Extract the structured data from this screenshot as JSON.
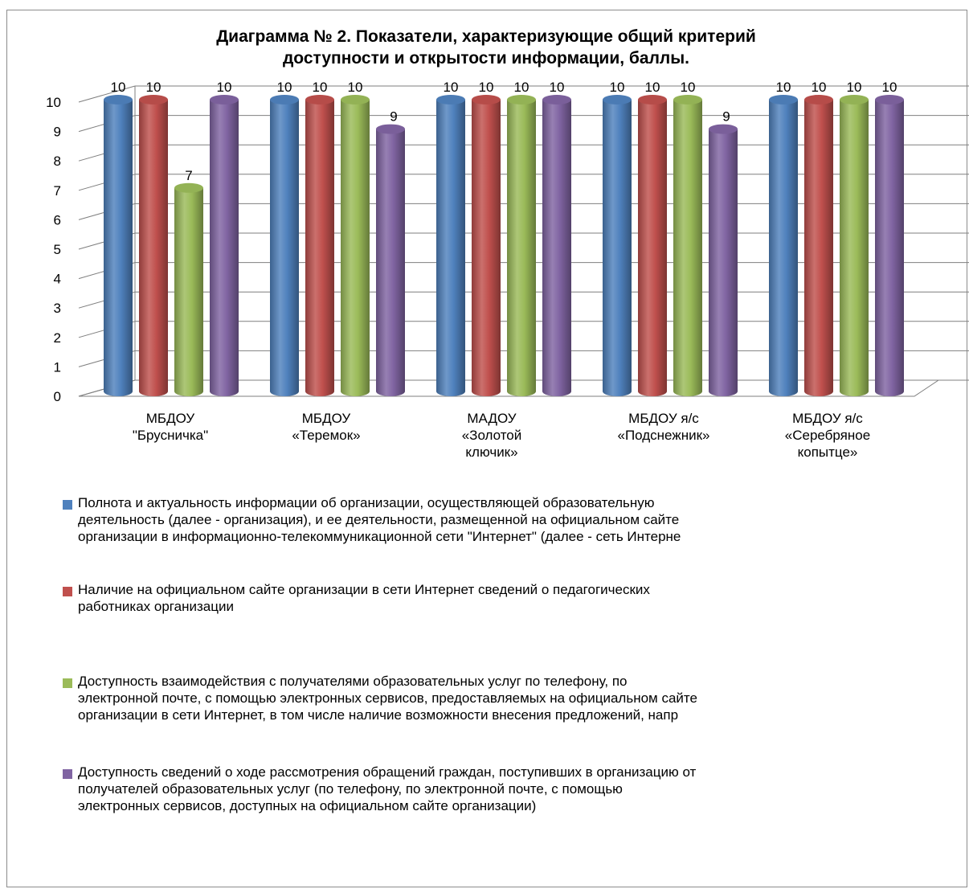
{
  "chart_data": {
    "type": "bar",
    "title": "Диаграмма № 2. Показатели, характеризующие общий критерий\nдоступности и открытости информации, баллы.",
    "categories": [
      [
        "МБДОУ",
        "\"Брусничка\""
      ],
      [
        "МБДОУ",
        "«Теремок»"
      ],
      [
        "МАДОУ",
        "«Золотой",
        "ключик»"
      ],
      [
        "МБДОУ я/с",
        "«Подснежник»"
      ],
      [
        "МБДОУ я/с",
        "«Серебряное",
        "копытце»"
      ]
    ],
    "series": [
      {
        "name": "Полнота и актуальность информации об организации, осуществляющей образовательную\nдеятельность (далее - организация), и ее деятельности, размещенной на официальном сайте\nорганизации в информационно-телекоммуникационной  сети \"Интернет\" (далее - сеть Интерне",
        "color": "#4f81bd",
        "values": [
          10,
          10,
          10,
          10,
          10
        ]
      },
      {
        "name": "Наличие на официальном сайте организации в сети Интернет сведений о педагогических\nработниках организации",
        "color": "#c0504d",
        "values": [
          10,
          10,
          10,
          10,
          10
        ]
      },
      {
        "name": "Доступность взаимодействия с получателями образовательных услуг по телефону, по\nэлектронной почте, с помощью электронных сервисов, предоставляемых на официальном сайте\nорганизации в сети Интернет, в том числе наличие возможности внесения  предложений, напр",
        "color": "#9bbb59",
        "values": [
          7,
          10,
          10,
          10,
          10
        ]
      },
      {
        "name": "Доступность сведений о ходе рассмотрения обращений граждан, поступивших в организацию от\nполучателей образовательных услуг (по телефону, по электронной почте, с помощью\nэлектронных сервисов, доступных на официальном сайте организации)",
        "color": "#8064a2",
        "values": [
          10,
          9,
          10,
          9,
          10
        ]
      }
    ],
    "yticks": [
      "0",
      "1",
      "2",
      "3",
      "4",
      "5",
      "6",
      "7",
      "8",
      "9",
      "10"
    ],
    "ylim": [
      0,
      10
    ],
    "grid": true,
    "legend_position": "bottom",
    "data_labels": true
  }
}
